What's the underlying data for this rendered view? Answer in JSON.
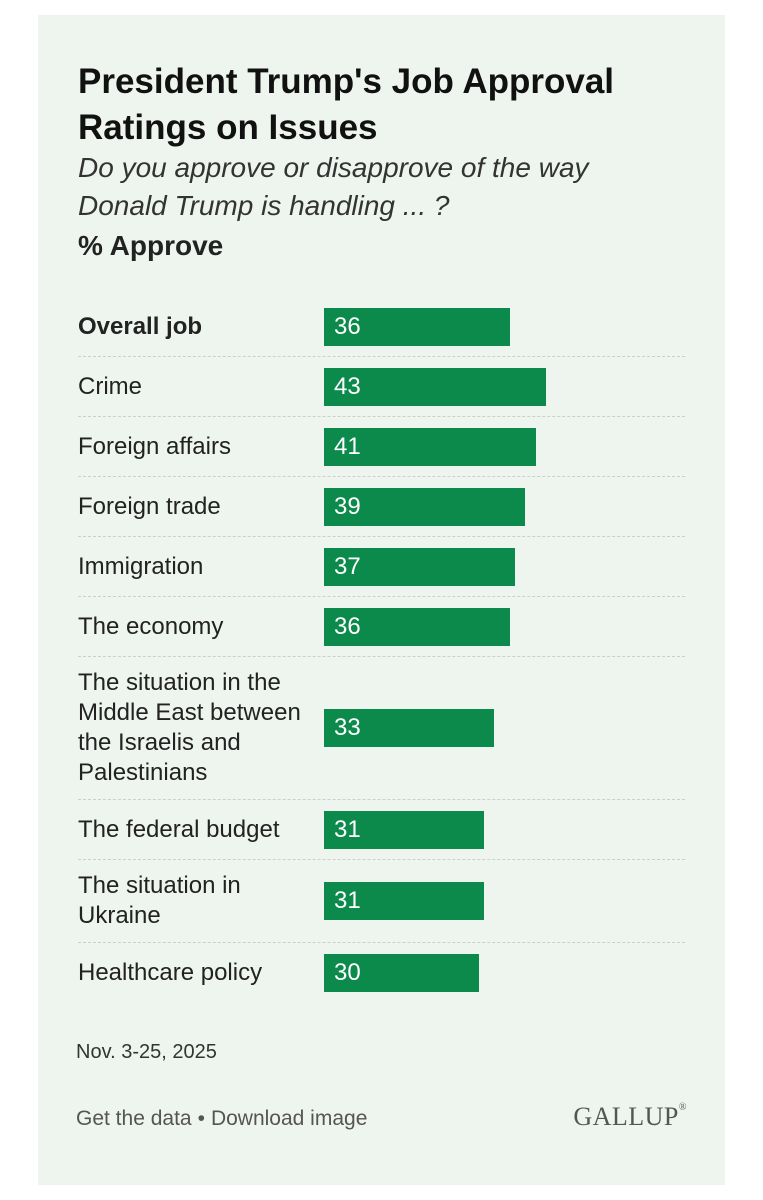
{
  "header": {
    "title": "President Trump's Job Approval Ratings on Issues",
    "subtitle": "Do you approve or disapprove of the way Donald Trump is handling ... ?",
    "unit_label": "% Approve"
  },
  "chart_data": {
    "type": "bar",
    "orientation": "horizontal",
    "title": "President Trump's Job Approval Ratings on Issues",
    "ylabel": "% Approve",
    "categories": [
      "Overall job",
      "Crime",
      "Foreign affairs",
      "Foreign trade",
      "Immigration",
      "The economy",
      "The situation in the Middle East between the Israelis and Palestinians",
      "The federal budget",
      "The situation in Ukraine",
      "Healthcare policy"
    ],
    "values": [
      36,
      43,
      41,
      39,
      37,
      36,
      33,
      31,
      31,
      30
    ],
    "xlim": [
      0,
      100
    ]
  },
  "footer": {
    "date": "Nov. 3-25, 2025",
    "get_data": "Get the data",
    "separator": "•",
    "download": "Download image",
    "logo": "GALLUP"
  },
  "colors": {
    "background": "#eef5ee",
    "bar": "#0b8a4b",
    "divider": "#c8d2c8"
  }
}
